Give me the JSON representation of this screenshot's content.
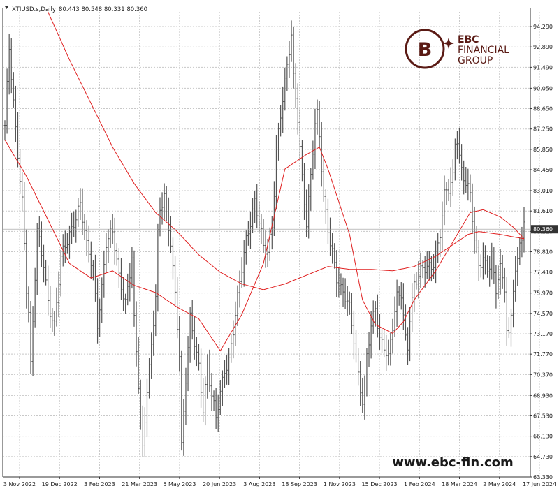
{
  "header": {
    "symbol_line": "XTIUSD.s,Daily",
    "ohlc": "80.443 80.548 80.331 80.360"
  },
  "logo": {
    "line1": "EBC",
    "line2": "FINANCIAL",
    "line3": "GROUP",
    "color": "#5a1a14"
  },
  "watermark": {
    "text": "www.ebc-fin.com"
  },
  "colors": {
    "price_bars": "#555555",
    "moving_averages": "#e02020",
    "grid": "#c8c8c8",
    "current_price_tag_bg": "#333333"
  },
  "chart_data": {
    "type": "ohlc",
    "symbol": "XTIUSD.s",
    "timeframe": "Daily",
    "last_price": 80.36,
    "current_price_label": "80.360",
    "ylim": [
      63.33,
      95.3
    ],
    "grid": true,
    "x_tick_labels": [
      "3 Nov 2022",
      "19 Dec 2022",
      "3 Feb 2023",
      "21 Mar 2023",
      "5 May 2023",
      "20 Jun 2023",
      "3 Aug 2023",
      "18 Sep 2023",
      "1 Nov 2023",
      "15 Dec 2023",
      "1 Feb 2024",
      "18 Mar 2024",
      "2 May 2024",
      "17 Jun 2024"
    ],
    "y_ticks": [
      {
        "value": 94.29,
        "label": "94.290"
      },
      {
        "value": 92.89,
        "label": "92.890"
      },
      {
        "value": 91.49,
        "label": "91.490"
      },
      {
        "value": 90.05,
        "label": "90.050"
      },
      {
        "value": 88.65,
        "label": "88.650"
      },
      {
        "value": 87.25,
        "label": "87.250"
      },
      {
        "value": 85.85,
        "label": "85.850"
      },
      {
        "value": 84.45,
        "label": "84.450"
      },
      {
        "value": 83.01,
        "label": "83.010"
      },
      {
        "value": 81.61,
        "label": "81.610"
      },
      {
        "value": 80.21,
        "label": "80.210"
      },
      {
        "value": 78.81,
        "label": "78.810"
      },
      {
        "value": 77.41,
        "label": "77.410"
      },
      {
        "value": 75.97,
        "label": "75.970"
      },
      {
        "value": 74.57,
        "label": "74.570"
      },
      {
        "value": 73.17,
        "label": "73.170"
      },
      {
        "value": 71.77,
        "label": "71.770"
      },
      {
        "value": 70.37,
        "label": "70.370"
      },
      {
        "value": 68.93,
        "label": "68.930"
      },
      {
        "value": 67.53,
        "label": "67.530"
      },
      {
        "value": 66.13,
        "label": "66.130"
      },
      {
        "value": 64.73,
        "label": "64.730"
      },
      {
        "value": 63.33,
        "label": "63.330"
      }
    ],
    "price_anchors": [
      [
        0,
        87.5
      ],
      [
        2,
        92.6
      ],
      [
        5,
        87.0
      ],
      [
        8,
        82.5
      ],
      [
        10,
        76.5
      ],
      [
        11,
        74.8
      ],
      [
        12,
        70.9
      ],
      [
        15,
        80.0
      ],
      [
        18,
        78.0
      ],
      [
        20,
        75.5
      ],
      [
        23,
        73.8
      ],
      [
        26,
        78.2
      ],
      [
        29,
        79.5
      ],
      [
        32,
        81.0
      ],
      [
        35,
        82.2
      ],
      [
        38,
        79.0
      ],
      [
        41,
        77.5
      ],
      [
        43,
        74.0
      ],
      [
        45,
        76.5
      ],
      [
        47,
        79.5
      ],
      [
        50,
        80.0
      ],
      [
        53,
        77.0
      ],
      [
        56,
        75.5
      ],
      [
        59,
        78.5
      ],
      [
        60,
        74.0
      ],
      [
        62,
        69.5
      ],
      [
        64,
        65.0
      ],
      [
        66,
        69.5
      ],
      [
        68,
        72.5
      ],
      [
        70,
        76.0
      ],
      [
        71,
        80.0
      ],
      [
        72,
        81.5
      ],
      [
        74,
        82.5
      ],
      [
        75,
        81.0
      ],
      [
        77,
        79.5
      ],
      [
        79,
        76.0
      ],
      [
        80,
        74.0
      ],
      [
        81,
        72.0
      ],
      [
        82,
        65.5
      ],
      [
        84,
        70.0
      ],
      [
        86,
        74.0
      ],
      [
        88,
        72.5
      ],
      [
        90,
        71.0
      ],
      [
        92,
        68.2
      ],
      [
        94,
        71.0
      ],
      [
        96,
        68.8
      ],
      [
        98,
        67.2
      ],
      [
        100,
        69.0
      ],
      [
        102,
        70.8
      ],
      [
        104,
        71.5
      ],
      [
        106,
        73.5
      ],
      [
        108,
        75.5
      ],
      [
        110,
        77.5
      ],
      [
        112,
        79.5
      ],
      [
        114,
        81.0
      ],
      [
        116,
        82.5
      ],
      [
        118,
        81.0
      ],
      [
        120,
        79.0
      ],
      [
        122,
        78.5
      ],
      [
        124,
        80.5
      ],
      [
        125,
        83.0
      ],
      [
        126,
        86.0
      ],
      [
        128,
        88.5
      ],
      [
        130,
        90.5
      ],
      [
        132,
        92.5
      ],
      [
        133,
        93.5
      ],
      [
        134,
        90.5
      ],
      [
        136,
        88.0
      ],
      [
        138,
        84.0
      ],
      [
        140,
        81.0
      ],
      [
        142,
        84.0
      ],
      [
        144,
        87.5
      ],
      [
        145,
        88.0
      ],
      [
        146,
        86.5
      ],
      [
        148,
        82.5
      ],
      [
        150,
        80.5
      ],
      [
        152,
        79.0
      ],
      [
        154,
        77.0
      ],
      [
        156,
        76.0
      ],
      [
        158,
        75.5
      ],
      [
        160,
        75.0
      ],
      [
        162,
        73.0
      ],
      [
        164,
        70.5
      ],
      [
        165,
        69.5
      ],
      [
        166,
        68.5
      ],
      [
        167,
        69.0
      ],
      [
        168,
        71.5
      ],
      [
        170,
        73.5
      ],
      [
        172,
        75.0
      ],
      [
        174,
        73.0
      ],
      [
        176,
        72.5
      ],
      [
        178,
        71.5
      ],
      [
        179,
        72.5
      ],
      [
        180,
        73.5
      ],
      [
        182,
        75.5
      ],
      [
        184,
        76.0
      ],
      [
        186,
        73.0
      ],
      [
        187,
        72.5
      ],
      [
        188,
        74.5
      ],
      [
        190,
        76.5
      ],
      [
        192,
        77.0
      ],
      [
        194,
        77.5
      ],
      [
        196,
        77.8
      ],
      [
        198,
        78.0
      ],
      [
        200,
        78.5
      ],
      [
        202,
        80.0
      ],
      [
        204,
        82.5
      ],
      [
        206,
        83.0
      ],
      [
        208,
        84.0
      ],
      [
        209,
        86.5
      ],
      [
        210,
        86.8
      ],
      [
        211,
        85.5
      ],
      [
        212,
        84.5
      ],
      [
        214,
        83.5
      ],
      [
        215,
        83.0
      ],
      [
        216,
        82.5
      ],
      [
        217,
        81.0
      ],
      [
        218,
        79.5
      ],
      [
        220,
        78.0
      ],
      [
        222,
        78.5
      ],
      [
        224,
        77.8
      ],
      [
        226,
        78.0
      ],
      [
        228,
        76.0
      ],
      [
        230,
        77.5
      ],
      [
        232,
        76.5
      ],
      [
        233,
        73.5
      ],
      [
        234,
        73.2
      ],
      [
        236,
        76.5
      ],
      [
        238,
        78.0
      ],
      [
        239,
        79.5
      ],
      [
        240,
        79.5
      ],
      [
        241,
        80.3
      ]
    ],
    "series": [
      {
        "type": "line",
        "anchors": [
          [
            0,
            86.5
          ],
          [
            10,
            84.0
          ],
          [
            20,
            81.0
          ],
          [
            30,
            78.0
          ],
          [
            40,
            77.0
          ],
          [
            50,
            77.5
          ],
          [
            60,
            76.5
          ],
          [
            70,
            76.0
          ],
          [
            80,
            75.0
          ],
          [
            90,
            74.2
          ],
          [
            100,
            72.0
          ],
          [
            110,
            74.5
          ],
          [
            120,
            78.0
          ],
          [
            130,
            84.5
          ],
          [
            140,
            85.5
          ],
          [
            146,
            86.0
          ],
          [
            150,
            84.5
          ],
          [
            160,
            80.0
          ],
          [
            166,
            75.5
          ],
          [
            172,
            73.8
          ],
          [
            180,
            73.2
          ],
          [
            185,
            74.0
          ],
          [
            190,
            75.5
          ],
          [
            200,
            77.5
          ],
          [
            210,
            80.0
          ],
          [
            216,
            81.5
          ],
          [
            222,
            81.7
          ],
          [
            230,
            81.2
          ],
          [
            236,
            80.5
          ],
          [
            241,
            79.7
          ]
        ]
      },
      {
        "type": "line",
        "anchors": [
          [
            20,
            95.3
          ],
          [
            30,
            92.0
          ],
          [
            40,
            89.0
          ],
          [
            50,
            86.0
          ],
          [
            60,
            83.5
          ],
          [
            70,
            81.5
          ],
          [
            80,
            80.2
          ],
          [
            90,
            78.6
          ],
          [
            100,
            77.4
          ],
          [
            110,
            76.6
          ],
          [
            120,
            76.2
          ],
          [
            130,
            76.6
          ],
          [
            140,
            77.2
          ],
          [
            150,
            77.8
          ],
          [
            160,
            77.6
          ],
          [
            170,
            77.6
          ],
          [
            180,
            77.5
          ],
          [
            190,
            77.8
          ],
          [
            200,
            78.5
          ],
          [
            210,
            79.5
          ],
          [
            215,
            80.0
          ],
          [
            220,
            80.2
          ],
          [
            230,
            80.0
          ],
          [
            241,
            79.7
          ]
        ]
      }
    ]
  }
}
